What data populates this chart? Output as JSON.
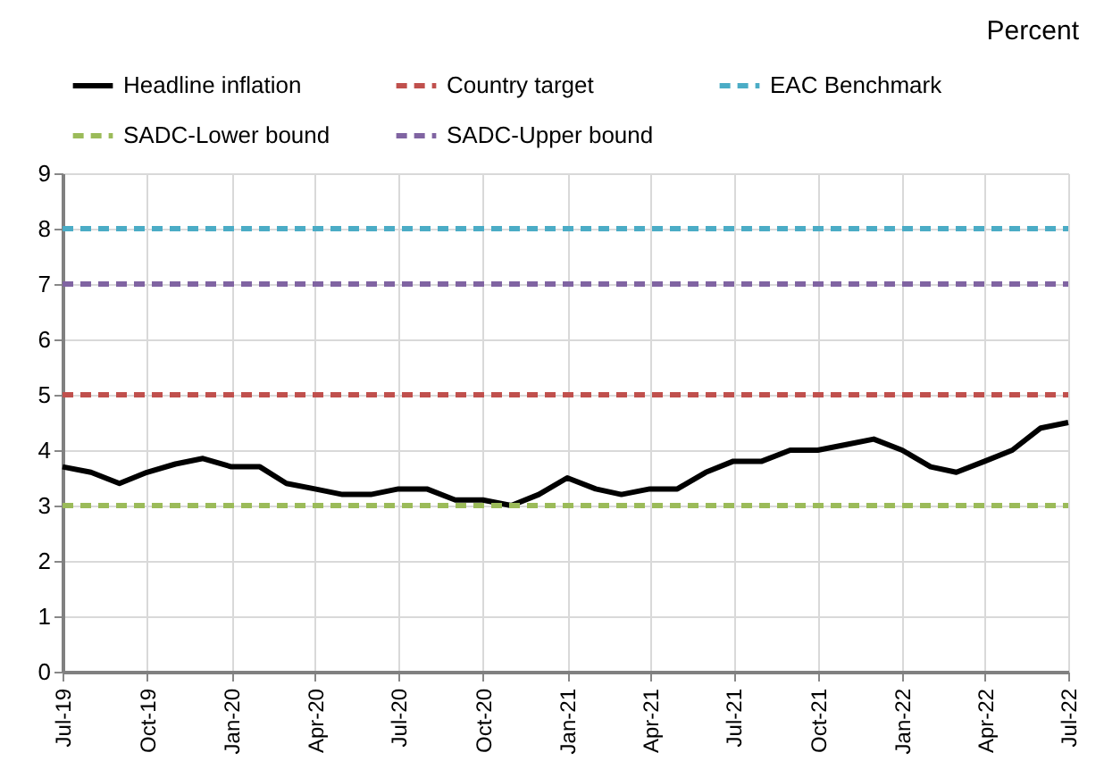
{
  "chart_data": {
    "type": "line",
    "ylabel": "Percent",
    "x": [
      "2019-07",
      "2019-08",
      "2019-09",
      "2019-10",
      "2019-11",
      "2019-12",
      "2020-01",
      "2020-02",
      "2020-03",
      "2020-04",
      "2020-05",
      "2020-06",
      "2020-07",
      "2020-08",
      "2020-09",
      "2020-10",
      "2020-11",
      "2020-12",
      "2021-01",
      "2021-02",
      "2021-03",
      "2021-04",
      "2021-05",
      "2021-06",
      "2021-07",
      "2021-08",
      "2021-09",
      "2021-10",
      "2021-11",
      "2021-12",
      "2022-01",
      "2022-02",
      "2022-03",
      "2022-04",
      "2022-05",
      "2022-06",
      "2022-07"
    ],
    "series": [
      {
        "name": "Headline inflation",
        "color": "#000000",
        "line_style": "solid",
        "values": [
          3.7,
          3.6,
          3.4,
          3.6,
          3.75,
          3.85,
          3.7,
          3.7,
          3.4,
          3.3,
          3.2,
          3.2,
          3.3,
          3.3,
          3.1,
          3.1,
          3.0,
          3.2,
          3.5,
          3.3,
          3.2,
          3.3,
          3.3,
          3.6,
          3.8,
          3.8,
          4.0,
          4.0,
          4.1,
          4.2,
          4.0,
          3.7,
          3.6,
          3.8,
          4.0,
          4.4,
          4.5
        ]
      },
      {
        "name": "Country target",
        "color": "#c0504d",
        "line_style": "dashed",
        "values": [
          5,
          5,
          5,
          5,
          5,
          5,
          5,
          5,
          5,
          5,
          5,
          5,
          5,
          5,
          5,
          5,
          5,
          5,
          5,
          5,
          5,
          5,
          5,
          5,
          5,
          5,
          5,
          5,
          5,
          5,
          5,
          5,
          5,
          5,
          5,
          5,
          5
        ]
      },
      {
        "name": "EAC Benchmark",
        "color": "#4bacc6",
        "line_style": "dashed",
        "values": [
          8,
          8,
          8,
          8,
          8,
          8,
          8,
          8,
          8,
          8,
          8,
          8,
          8,
          8,
          8,
          8,
          8,
          8,
          8,
          8,
          8,
          8,
          8,
          8,
          8,
          8,
          8,
          8,
          8,
          8,
          8,
          8,
          8,
          8,
          8,
          8,
          8
        ]
      },
      {
        "name": "SADC-Lower bound",
        "color": "#9bbb59",
        "line_style": "dashed",
        "values": [
          3,
          3,
          3,
          3,
          3,
          3,
          3,
          3,
          3,
          3,
          3,
          3,
          3,
          3,
          3,
          3,
          3,
          3,
          3,
          3,
          3,
          3,
          3,
          3,
          3,
          3,
          3,
          3,
          3,
          3,
          3,
          3,
          3,
          3,
          3,
          3,
          3
        ]
      },
      {
        "name": "SADC-Upper bound",
        "color": "#8064a2",
        "line_style": "dashed",
        "values": [
          7,
          7,
          7,
          7,
          7,
          7,
          7,
          7,
          7,
          7,
          7,
          7,
          7,
          7,
          7,
          7,
          7,
          7,
          7,
          7,
          7,
          7,
          7,
          7,
          7,
          7,
          7,
          7,
          7,
          7,
          7,
          7,
          7,
          7,
          7,
          7,
          7
        ]
      }
    ],
    "xlim": [
      "2019-07",
      "2022-07"
    ],
    "xticks": [
      {
        "value": "2019-07",
        "label": "Jul-19"
      },
      {
        "value": "2019-10",
        "label": "Oct-19"
      },
      {
        "value": "2020-01",
        "label": "Jan-20"
      },
      {
        "value": "2020-04",
        "label": "Apr-20"
      },
      {
        "value": "2020-07",
        "label": "Jul-20"
      },
      {
        "value": "2020-10",
        "label": "Oct-20"
      },
      {
        "value": "2021-01",
        "label": "Jan-21"
      },
      {
        "value": "2021-04",
        "label": "Apr-21"
      },
      {
        "value": "2021-07",
        "label": "Jul-21"
      },
      {
        "value": "2021-10",
        "label": "Oct-21"
      },
      {
        "value": "2022-01",
        "label": "Jan-22"
      },
      {
        "value": "2022-04",
        "label": "Apr-22"
      },
      {
        "value": "2022-07",
        "label": "Jul-22"
      }
    ],
    "ylim": [
      0,
      9
    ],
    "yticks": [
      0,
      1,
      2,
      3,
      4,
      5,
      6,
      7,
      8,
      9
    ],
    "grid": true,
    "legend": "top"
  }
}
